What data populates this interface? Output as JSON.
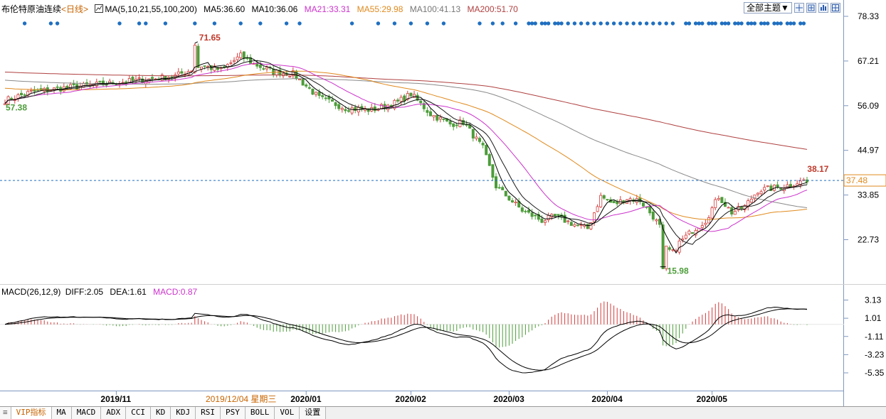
{
  "header": {
    "instrument": "布伦特原油连续",
    "period": "<日线>",
    "ma_label": "MA(5,10,21,55,100,200)",
    "ma5": "MA5:36.60",
    "ma10": "MA10:36.06",
    "ma21": "MA21:33.31",
    "ma55": "MA55:29.98",
    "ma100": "MA100:41.13",
    "ma200": "MA200:51.70"
  },
  "toolbar": {
    "theme_label": "全部主题▼"
  },
  "macd_header": {
    "label": "MACD(26,12,9)",
    "diff": "DIFF:2.05",
    "dea": "DEA:1.61",
    "macd": "MACD:0.87"
  },
  "date_tooltip": "2019/12/04 星期三",
  "tabs": [
    "VIP指标",
    "MA",
    "MACD",
    "ADX",
    "CCI",
    "KD",
    "KDJ",
    "RSI",
    "PSY",
    "BOLL",
    "VOL",
    "设置"
  ],
  "active_tab": "VIP指标",
  "colors": {
    "up": "#d43c3c",
    "down": "#4d9c3a",
    "ma5": "#000000",
    "ma10": "#1a1a1a",
    "ma21": "#cc33cc",
    "ma55": "#e08a1e",
    "ma100": "#8a8a8a",
    "ma200": "#b04040",
    "dots": "#1f6fc0",
    "label_red": "#c0392b",
    "label_green": "#4d9c3a",
    "price_tag": "#e08a1e"
  },
  "chart_data": [
    {
      "type": "candlestick",
      "title": "布伦特原油连续 <日线>",
      "price_axis": {
        "ticks": [
          78.33,
          67.21,
          56.09,
          44.97,
          33.85,
          22.73
        ],
        "min": 13.5,
        "max": 78.33
      },
      "time_axis": {
        "labels": [
          "2019/11",
          "2020/01",
          "2020/02",
          "2020/03",
          "2020/04",
          "2020/05"
        ]
      },
      "annotations": {
        "high": "71.65",
        "start": "57.38",
        "low": "15.98",
        "recent_high": "38.17",
        "last_price": "37.48"
      },
      "ma_last": {
        "MA5": 36.6,
        "MA10": 36.06,
        "MA21": 33.31,
        "MA55": 29.98,
        "MA100": 41.13,
        "MA200": 51.7
      },
      "keypoints_close": [
        [
          0,
          57.4
        ],
        [
          8,
          59.5
        ],
        [
          18,
          60.5
        ],
        [
          30,
          61.5
        ],
        [
          42,
          62.5
        ],
        [
          52,
          63.5
        ],
        [
          60,
          66.0
        ],
        [
          66,
          65.0
        ],
        [
          72,
          68.5
        ],
        [
          76,
          66.5
        ],
        [
          82,
          64.5
        ],
        [
          88,
          64.0
        ],
        [
          96,
          58.0
        ],
        [
          104,
          55.5
        ],
        [
          112,
          55.0
        ],
        [
          120,
          57.0
        ],
        [
          124,
          59.0
        ],
        [
          130,
          54.0
        ],
        [
          136,
          51.5
        ],
        [
          140,
          52.0
        ],
        [
          146,
          45.5
        ],
        [
          150,
          36.0
        ],
        [
          154,
          33.0
        ],
        [
          158,
          30.0
        ],
        [
          164,
          27.5
        ],
        [
          168,
          28.5
        ],
        [
          174,
          26.5
        ],
        [
          178,
          25.5
        ],
        [
          182,
          33.5
        ],
        [
          186,
          31.5
        ],
        [
          190,
          33.0
        ],
        [
          194,
          32.5
        ],
        [
          198,
          28.5
        ],
        [
          200,
          26.0
        ],
        [
          202,
          20.5
        ],
        [
          204,
          19.5
        ],
        [
          206,
          22.0
        ],
        [
          210,
          25.0
        ],
        [
          214,
          27.5
        ],
        [
          218,
          33.5
        ],
        [
          222,
          29.5
        ],
        [
          226,
          31.0
        ],
        [
          230,
          35.0
        ],
        [
          234,
          35.5
        ],
        [
          238,
          36.0
        ],
        [
          242,
          37.0
        ],
        [
          244,
          37.2
        ]
      ],
      "extremes": [
        [
          58,
          71.65
        ],
        [
          201,
          15.98
        ],
        [
          244,
          38.17
        ]
      ]
    },
    {
      "type": "line+bar",
      "title": "MACD(26,12,9)",
      "y_ticks": [
        3.13,
        1.01,
        -1.11,
        -3.23,
        -5.35
      ],
      "series": [
        {
          "name": "DIFF",
          "last": 2.05
        },
        {
          "name": "DEA",
          "last": 1.61
        },
        {
          "name": "MACD",
          "last": 0.87
        }
      ]
    }
  ]
}
